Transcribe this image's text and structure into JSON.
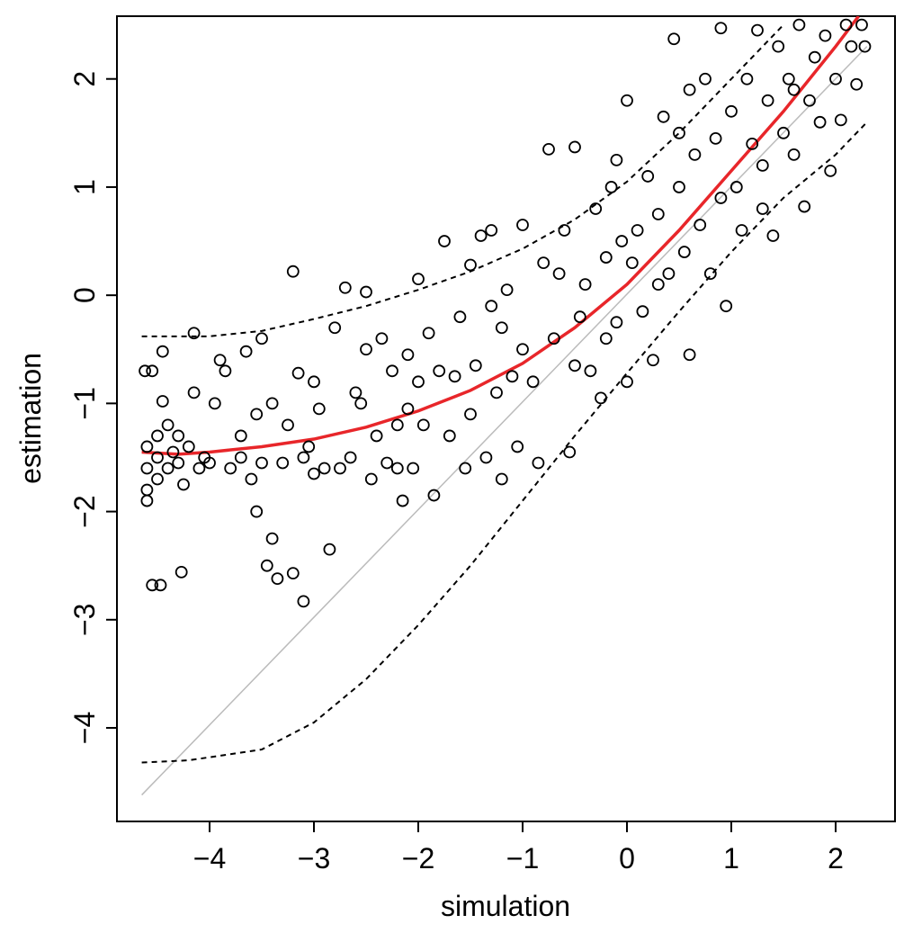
{
  "chart_data": {
    "type": "scatter",
    "xlabel": "simulation",
    "ylabel": "estimation",
    "xlim": [
      -4.888,
      2.569
    ],
    "ylim": [
      -4.865,
      2.58
    ],
    "xticks": [
      {
        "value": -4,
        "label": "−4"
      },
      {
        "value": -3,
        "label": "−3"
      },
      {
        "value": -2,
        "label": "−2"
      },
      {
        "value": -1,
        "label": "−1"
      },
      0,
      1,
      2
    ],
    "yticks": [
      {
        "value": -4,
        "label": "−4"
      },
      {
        "value": -3,
        "label": "−3"
      },
      {
        "value": -2,
        "label": "−2"
      },
      {
        "value": -1,
        "label": "−1"
      },
      0,
      1,
      2
    ],
    "series": [
      {
        "mode": "markers",
        "color": "#000000",
        "x": [
          -4.62,
          -4.55,
          -4.6,
          -4.6,
          -4.6,
          -4.6,
          -4.5,
          -4.5,
          -4.5,
          -4.45,
          -4.45,
          -4.4,
          -4.4,
          -4.35,
          -4.3,
          -4.3,
          -4.25,
          -4.2,
          -4.15,
          -4.1,
          -4.05,
          -4,
          -3.95,
          -3.9,
          -4.55,
          -4.47,
          -4.27,
          -4.15,
          -3.8,
          -3.7,
          -3.65,
          -3.6,
          -3.55,
          -3.5,
          -3.45,
          -3.4,
          -3.35,
          -3.2,
          -3.1,
          -3.2,
          -3.3,
          -3.25,
          -3.15,
          -3.05,
          -3,
          -3,
          -3.1,
          -3.4,
          -3.5,
          -3.7,
          -3.85,
          -3.55,
          -2.9,
          -2.85,
          -2.8,
          -2.7,
          -2.65,
          -2.6,
          -2.5,
          -2.5,
          -2.45,
          -2.4,
          -2.3,
          -2.25,
          -2.2,
          -2.15,
          -2.1,
          -2.05,
          -2,
          -2,
          -2.95,
          -2.75,
          -2.55,
          -2.35,
          -2.2,
          -2.1,
          -1.9,
          -1.85,
          -1.8,
          -1.75,
          -1.7,
          -1.6,
          -1.55,
          -1.5,
          -1.45,
          -1.4,
          -1.35,
          -1.3,
          -1.25,
          -1.2,
          -1.15,
          -1.1,
          -1.05,
          -1,
          -1,
          -1.95,
          -1.65,
          -1.5,
          -1.2,
          -1.3,
          -0.9,
          -0.85,
          -0.8,
          -0.75,
          -0.7,
          -0.6,
          -0.55,
          -0.5,
          -0.45,
          -0.4,
          -0.35,
          -0.3,
          -0.25,
          -0.2,
          -0.15,
          -0.1,
          -0.05,
          0,
          0,
          -0.65,
          -0.5,
          -0.2,
          -0.1,
          0.1,
          0.15,
          0.2,
          0.25,
          0.3,
          0.35,
          0.4,
          0.45,
          0.5,
          0.55,
          0.6,
          0.6,
          0.65,
          0.7,
          0.75,
          0.8,
          0.85,
          0.9,
          0.95,
          1.0,
          0.3,
          0.5,
          0.9,
          0.05,
          1.05,
          1.1,
          1.15,
          1.2,
          1.25,
          1.3,
          1.35,
          1.4,
          1.45,
          1.5,
          1.55,
          1.6,
          1.65,
          1.7,
          1.75,
          1.8,
          1.85,
          1.9,
          1.95,
          2.0,
          2.05,
          2.1,
          2.15,
          2.2,
          2.25,
          2.28,
          1.3,
          1.6
        ],
        "values": [
          -0.7,
          -0.7,
          -1.4,
          -1.6,
          -1.8,
          -1.9,
          -1.5,
          -1.3,
          -1.7,
          -0.52,
          -0.98,
          -1.2,
          -1.6,
          -1.45,
          -1.3,
          -1.55,
          -1.75,
          -1.4,
          -0.9,
          -1.6,
          -1.5,
          -1.55,
          -1.0,
          -0.6,
          -2.68,
          -2.68,
          -2.56,
          -0.35,
          -1.6,
          -1.3,
          -0.52,
          -1.7,
          -2.0,
          -0.4,
          -2.5,
          -2.25,
          -2.62,
          -2.57,
          -2.83,
          0.22,
          -1.55,
          -1.2,
          -0.72,
          -1.4,
          -1.65,
          -0.8,
          -1.5,
          -1.0,
          -1.55,
          -1.5,
          -0.7,
          -1.1,
          -1.6,
          -2.35,
          -0.3,
          0.07,
          -1.5,
          -0.9,
          -0.5,
          0.03,
          -1.7,
          -1.3,
          -1.55,
          -0.7,
          -1.2,
          -1.9,
          -0.55,
          -1.6,
          0.15,
          -0.8,
          -1.05,
          -1.6,
          -1.0,
          -0.4,
          -1.6,
          -1.05,
          -0.35,
          -1.85,
          -0.7,
          0.5,
          -1.3,
          -0.2,
          -1.6,
          0.28,
          -0.65,
          0.55,
          -1.5,
          -0.1,
          -0.9,
          -1.7,
          0.05,
          -0.75,
          -1.4,
          0.65,
          -0.5,
          -1.2,
          -0.75,
          -1.1,
          -0.3,
          0.6,
          -0.8,
          -1.55,
          0.3,
          1.35,
          -0.4,
          0.6,
          -1.45,
          1.37,
          -0.2,
          0.1,
          -0.7,
          0.8,
          -0.95,
          0.35,
          1.0,
          -0.25,
          0.5,
          -0.8,
          1.8,
          0.2,
          -0.65,
          -0.4,
          1.25,
          0.6,
          -0.15,
          1.1,
          -0.6,
          0.75,
          1.65,
          0.2,
          2.37,
          1.0,
          0.4,
          -0.55,
          1.9,
          1.3,
          0.65,
          2.0,
          0.2,
          1.45,
          2.47,
          -0.1,
          1.7,
          0.1,
          1.5,
          0.9,
          0.3,
          1.0,
          0.6,
          2.0,
          1.4,
          2.45,
          0.8,
          1.8,
          0.55,
          2.3,
          1.5,
          2.0,
          1.3,
          2.5,
          0.82,
          1.8,
          2.2,
          1.6,
          2.4,
          1.15,
          2.0,
          1.62,
          2.5,
          2.3,
          1.95,
          2.5,
          2.3,
          1.2,
          1.9
        ]
      },
      {
        "mode": "line",
        "color": "#bbbbbb",
        "dash": false,
        "width": 1.5,
        "x": [
          -4.65,
          2.3
        ],
        "values": [
          -4.62,
          2.3
        ]
      },
      {
        "mode": "line",
        "color": "#000000",
        "dash": true,
        "width": 2,
        "x": [
          -4.65,
          -4,
          -3.5,
          -3,
          -2.5,
          -2,
          -1.5,
          -1,
          -0.5,
          0,
          0.5,
          1,
          1.5
        ],
        "values": [
          -0.38,
          -0.38,
          -0.33,
          -0.22,
          -0.1,
          0.05,
          0.22,
          0.43,
          0.7,
          1.05,
          1.5,
          2.0,
          2.5
        ]
      },
      {
        "mode": "line",
        "color": "#000000",
        "dash": true,
        "width": 2,
        "x": [
          -4.65,
          -4.2,
          -3.5,
          -3,
          -2.5,
          -2,
          -1.5,
          -1,
          -0.5,
          0,
          0.5,
          1,
          1.5,
          2,
          2.3
        ],
        "values": [
          -4.32,
          -4.3,
          -4.2,
          -3.95,
          -3.55,
          -3.05,
          -2.5,
          -1.9,
          -1.3,
          -0.72,
          -0.15,
          0.4,
          0.9,
          1.3,
          1.6
        ]
      },
      {
        "mode": "line",
        "color": "#e8262a",
        "dash": false,
        "width": 3.5,
        "x": [
          -4.65,
          -4.3,
          -4,
          -3.5,
          -3,
          -2.5,
          -2,
          -1.5,
          -1,
          -0.5,
          0,
          0.5,
          1,
          1.5,
          2,
          2.22
        ],
        "values": [
          -1.45,
          -1.47,
          -1.45,
          -1.4,
          -1.33,
          -1.22,
          -1.07,
          -0.88,
          -0.63,
          -0.3,
          0.1,
          0.6,
          1.15,
          1.7,
          2.3,
          2.58
        ]
      }
    ]
  }
}
